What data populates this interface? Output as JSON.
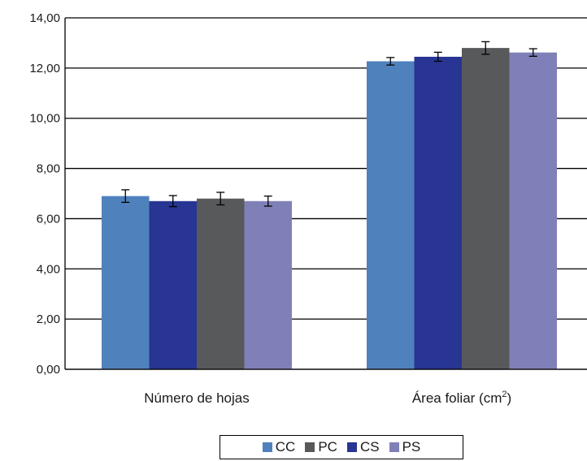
{
  "chart_data": {
    "type": "bar",
    "categories": [
      "Número de hojas",
      "Área foliar (cm2)"
    ],
    "category_labels": [
      {
        "text": "Número de hojas"
      },
      {
        "text": "Área foliar (cm",
        "sup": "2",
        "after": ")"
      }
    ],
    "series": [
      {
        "name": "CC",
        "values": [
          6.9,
          12.27
        ],
        "errors": [
          0.25,
          0.15
        ],
        "color": "#4f81bd"
      },
      {
        "name": "CS",
        "values": [
          6.7,
          12.45
        ],
        "errors": [
          0.22,
          0.18
        ],
        "color": "#283593"
      },
      {
        "name": "PC",
        "values": [
          6.8,
          12.8
        ],
        "errors": [
          0.25,
          0.25
        ],
        "color": "#58595b"
      },
      {
        "name": "PS",
        "values": [
          6.7,
          12.62
        ],
        "errors": [
          0.2,
          0.15
        ],
        "color": "#8080b8"
      }
    ],
    "ylim": [
      0,
      14
    ],
    "yticks": [
      "0,00",
      "2,00",
      "4,00",
      "6,00",
      "8,00",
      "10,00",
      "12,00",
      "14,00"
    ],
    "ytick_values": [
      0,
      2,
      4,
      6,
      8,
      10,
      12,
      14
    ],
    "grid": true,
    "legend": {
      "placement": "bottom-center",
      "order": [
        "CC",
        "PC",
        "CS",
        "PS"
      ]
    }
  }
}
